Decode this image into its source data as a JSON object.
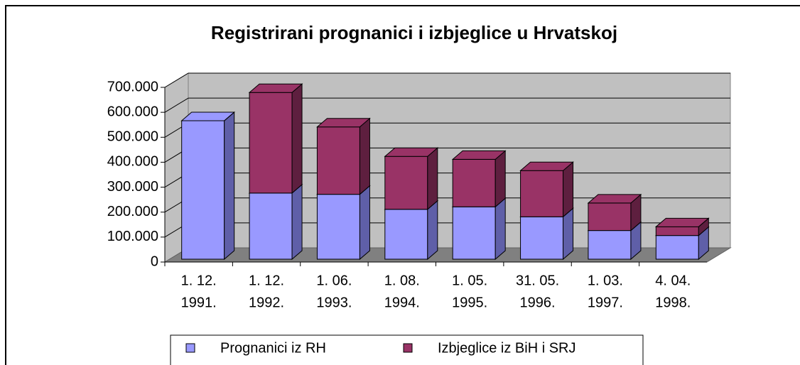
{
  "chart_data": {
    "type": "bar3d-stacked",
    "title": "Registrirani prognanici i izbjeglice u Hrvatskoj",
    "categories": [
      "1. 12. 1991.",
      "1. 12. 1992.",
      "1. 06. 1993.",
      "1. 08. 1994.",
      "1. 05. 1995.",
      "31. 05. 1996.",
      "1. 03. 1997.",
      "4. 04. 1998."
    ],
    "series": [
      {
        "name": "Prognanici iz RH",
        "color": "#9999ff",
        "side": "#5f5fa8",
        "values": [
          555000,
          265000,
          260000,
          200000,
          210000,
          170000,
          115000,
          95000
        ]
      },
      {
        "name": "Izbjeglice iz BiH i SRJ",
        "color": "#993366",
        "side": "#5e1f3f",
        "values": [
          0,
          403000,
          270000,
          212000,
          190000,
          185000,
          110000,
          35000
        ]
      }
    ],
    "ylim": [
      0,
      700000
    ],
    "yticks": [
      {
        "value": 0,
        "label": "0"
      },
      {
        "value": 100000,
        "label": "100.000"
      },
      {
        "value": 200000,
        "label": "200.000"
      },
      {
        "value": 300000,
        "label": "300.000"
      },
      {
        "value": 400000,
        "label": "400.000"
      },
      {
        "value": 500000,
        "label": "500.000"
      },
      {
        "value": 600000,
        "label": "600.000"
      },
      {
        "value": 700000,
        "label": "700.000"
      }
    ],
    "grid": true,
    "legend": "bottom"
  }
}
